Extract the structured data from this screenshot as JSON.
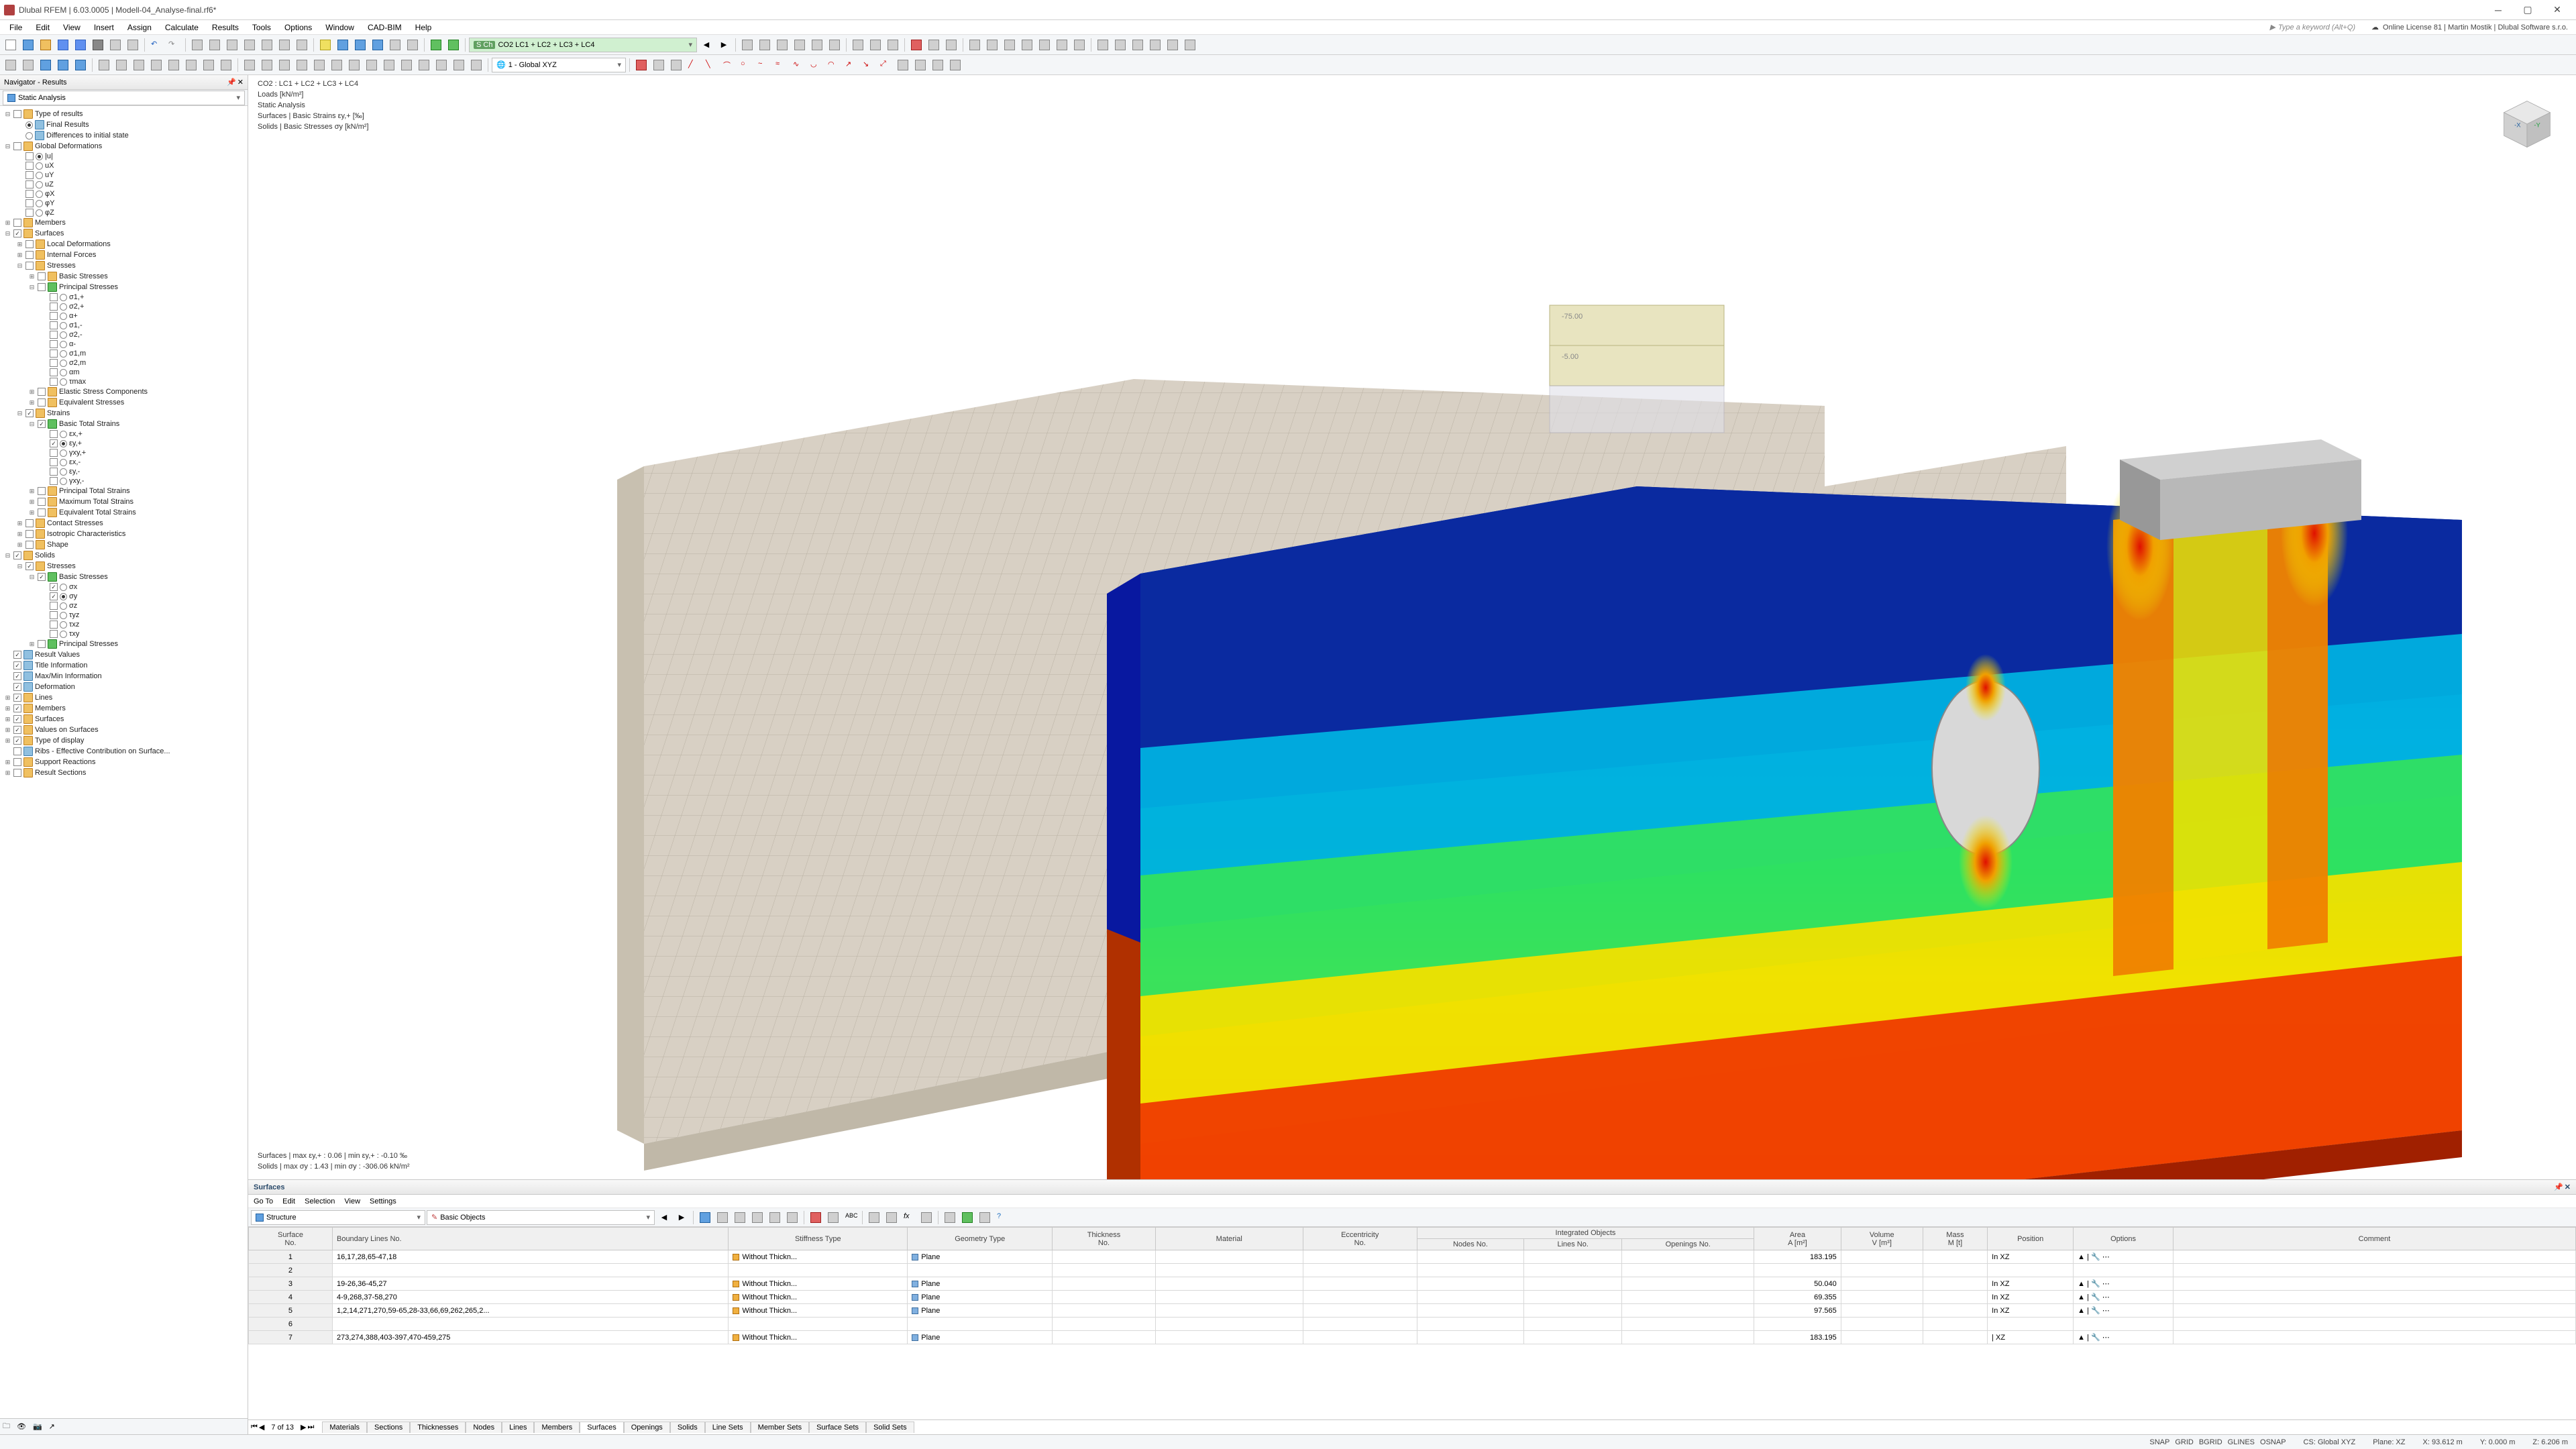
{
  "app": {
    "title": "Dlubal RFEM | 6.03.0005 | Modell-04_Analyse-final.rf6*",
    "search_placeholder": "Type a keyword (Alt+Q)",
    "license": "Online License 81 | Martin Mostik | Dlubal Software s.r.o."
  },
  "menu": [
    "File",
    "Edit",
    "View",
    "Insert",
    "Assign",
    "Calculate",
    "Results",
    "Tools",
    "Options",
    "Window",
    "CAD-BIM",
    "Help"
  ],
  "combo_loadcase": "CO2   LC1 + LC2 + LC3 + LC4",
  "combo_cs": "1 - Global XYZ",
  "navigator": {
    "title": "Navigator - Results",
    "subtype": "Static Analysis",
    "tree": [
      {
        "d": 0,
        "tw": "-",
        "ck": 0,
        "ic": "folder",
        "l": "Type of results"
      },
      {
        "d": 1,
        "tw": "",
        "r": 1,
        "ic": "result",
        "l": "Final Results"
      },
      {
        "d": 1,
        "tw": "",
        "r": 0,
        "ic": "result",
        "l": "Differences to initial state"
      },
      {
        "d": 0,
        "tw": "-",
        "ck": 0,
        "ic": "folder",
        "l": "Global Deformations"
      },
      {
        "d": 1,
        "tw": "",
        "r": 1,
        "ck": 0,
        "ic": "",
        "l": "|u|"
      },
      {
        "d": 1,
        "tw": "",
        "r": 0,
        "ck": 0,
        "ic": "",
        "l": "uX"
      },
      {
        "d": 1,
        "tw": "",
        "r": 0,
        "ck": 0,
        "ic": "",
        "l": "uY"
      },
      {
        "d": 1,
        "tw": "",
        "r": 0,
        "ck": 0,
        "ic": "",
        "l": "uZ"
      },
      {
        "d": 1,
        "tw": "",
        "r": 0,
        "ck": 0,
        "ic": "",
        "l": "φX"
      },
      {
        "d": 1,
        "tw": "",
        "r": 0,
        "ck": 0,
        "ic": "",
        "l": "φY"
      },
      {
        "d": 1,
        "tw": "",
        "r": 0,
        "ck": 0,
        "ic": "",
        "l": "φZ"
      },
      {
        "d": 0,
        "tw": "+",
        "ck": 0,
        "ic": "folder",
        "l": "Members"
      },
      {
        "d": 0,
        "tw": "-",
        "ck": 1,
        "ic": "folder",
        "l": "Surfaces"
      },
      {
        "d": 1,
        "tw": "+",
        "ck": 0,
        "ic": "folder",
        "l": "Local Deformations"
      },
      {
        "d": 1,
        "tw": "+",
        "ck": 0,
        "ic": "folder",
        "l": "Internal Forces"
      },
      {
        "d": 1,
        "tw": "-",
        "ck": 0,
        "ic": "folder",
        "l": "Stresses"
      },
      {
        "d": 2,
        "tw": "+",
        "ck": 0,
        "ic": "folder",
        "l": "Basic Stresses"
      },
      {
        "d": 2,
        "tw": "-",
        "ck": 0,
        "ic": "green",
        "l": "Principal Stresses"
      },
      {
        "d": 3,
        "tw": "",
        "r": 0,
        "ck": 0,
        "ic": "",
        "l": "σ1,+"
      },
      {
        "d": 3,
        "tw": "",
        "r": 0,
        "ck": 0,
        "ic": "",
        "l": "σ2,+"
      },
      {
        "d": 3,
        "tw": "",
        "r": 0,
        "ck": 0,
        "ic": "",
        "l": "α+"
      },
      {
        "d": 3,
        "tw": "",
        "r": 0,
        "ck": 0,
        "ic": "",
        "l": "σ1,-"
      },
      {
        "d": 3,
        "tw": "",
        "r": 0,
        "ck": 0,
        "ic": "",
        "l": "σ2,-"
      },
      {
        "d": 3,
        "tw": "",
        "r": 0,
        "ck": 0,
        "ic": "",
        "l": "α-"
      },
      {
        "d": 3,
        "tw": "",
        "r": 0,
        "ck": 0,
        "ic": "",
        "l": "σ1,m"
      },
      {
        "d": 3,
        "tw": "",
        "r": 0,
        "ck": 0,
        "ic": "",
        "l": "σ2,m"
      },
      {
        "d": 3,
        "tw": "",
        "r": 0,
        "ck": 0,
        "ic": "",
        "l": "αm"
      },
      {
        "d": 3,
        "tw": "",
        "r": 0,
        "ck": 0,
        "ic": "",
        "l": "τmax"
      },
      {
        "d": 2,
        "tw": "+",
        "ck": 0,
        "ic": "folder",
        "l": "Elastic Stress Components"
      },
      {
        "d": 2,
        "tw": "+",
        "ck": 0,
        "ic": "folder",
        "l": "Equivalent Stresses"
      },
      {
        "d": 1,
        "tw": "-",
        "ck": 1,
        "ic": "folder",
        "l": "Strains"
      },
      {
        "d": 2,
        "tw": "-",
        "ck": 1,
        "ic": "green",
        "l": "Basic Total Strains"
      },
      {
        "d": 3,
        "tw": "",
        "r": 0,
        "ck": 0,
        "ic": "",
        "l": "εx,+"
      },
      {
        "d": 3,
        "tw": "",
        "r": 1,
        "ck": 1,
        "ic": "",
        "l": "εy,+"
      },
      {
        "d": 3,
        "tw": "",
        "r": 0,
        "ck": 0,
        "ic": "",
        "l": "γxy,+"
      },
      {
        "d": 3,
        "tw": "",
        "r": 0,
        "ck": 0,
        "ic": "",
        "l": "εx,-"
      },
      {
        "d": 3,
        "tw": "",
        "r": 0,
        "ck": 0,
        "ic": "",
        "l": "εy,-"
      },
      {
        "d": 3,
        "tw": "",
        "r": 0,
        "ck": 0,
        "ic": "",
        "l": "γxy,-"
      },
      {
        "d": 2,
        "tw": "+",
        "ck": 0,
        "ic": "folder",
        "l": "Principal Total Strains"
      },
      {
        "d": 2,
        "tw": "+",
        "ck": 0,
        "ic": "folder",
        "l": "Maximum Total Strains"
      },
      {
        "d": 2,
        "tw": "+",
        "ck": 0,
        "ic": "folder",
        "l": "Equivalent Total Strains"
      },
      {
        "d": 1,
        "tw": "+",
        "ck": 0,
        "ic": "folder",
        "l": "Contact Stresses"
      },
      {
        "d": 1,
        "tw": "+",
        "ck": 0,
        "ic": "folder",
        "l": "Isotropic Characteristics"
      },
      {
        "d": 1,
        "tw": "+",
        "ck": 0,
        "ic": "folder",
        "l": "Shape"
      },
      {
        "d": 0,
        "tw": "-",
        "ck": 1,
        "ic": "folder",
        "l": "Solids"
      },
      {
        "d": 1,
        "tw": "-",
        "ck": 1,
        "ic": "folder",
        "l": "Stresses"
      },
      {
        "d": 2,
        "tw": "-",
        "ck": 1,
        "ic": "green",
        "l": "Basic Stresses"
      },
      {
        "d": 3,
        "tw": "",
        "r": 0,
        "ck": 1,
        "ic": "",
        "l": "σx"
      },
      {
        "d": 3,
        "tw": "",
        "r": 1,
        "ck": 1,
        "ic": "",
        "l": "σy"
      },
      {
        "d": 3,
        "tw": "",
        "r": 0,
        "ck": 0,
        "ic": "",
        "l": "σz"
      },
      {
        "d": 3,
        "tw": "",
        "r": 0,
        "ck": 0,
        "ic": "",
        "l": "τyz"
      },
      {
        "d": 3,
        "tw": "",
        "r": 0,
        "ck": 0,
        "ic": "",
        "l": "τxz"
      },
      {
        "d": 3,
        "tw": "",
        "r": 0,
        "ck": 0,
        "ic": "",
        "l": "τxy"
      },
      {
        "d": 2,
        "tw": "+",
        "ck": 0,
        "ic": "green",
        "l": "Principal Stresses"
      },
      {
        "d": 0,
        "tw": "",
        "ck": 1,
        "ic": "result",
        "l": "Result Values"
      },
      {
        "d": 0,
        "tw": "",
        "ck": 1,
        "ic": "result",
        "l": "Title Information"
      },
      {
        "d": 0,
        "tw": "",
        "ck": 1,
        "ic": "result",
        "l": "Max/Min Information"
      },
      {
        "d": 0,
        "tw": "",
        "ck": 1,
        "ic": "result",
        "l": "Deformation"
      },
      {
        "d": 0,
        "tw": "+",
        "ck": 1,
        "ic": "folder",
        "l": "Lines"
      },
      {
        "d": 0,
        "tw": "+",
        "ck": 1,
        "ic": "folder",
        "l": "Members"
      },
      {
        "d": 0,
        "tw": "+",
        "ck": 1,
        "ic": "folder",
        "l": "Surfaces"
      },
      {
        "d": 0,
        "tw": "+",
        "ck": 1,
        "ic": "folder",
        "l": "Values on Surfaces"
      },
      {
        "d": 0,
        "tw": "+",
        "ck": 1,
        "ic": "folder",
        "l": "Type of display"
      },
      {
        "d": 0,
        "tw": "",
        "ck": 0,
        "ic": "result",
        "l": "Ribs - Effective Contribution on Surface..."
      },
      {
        "d": 0,
        "tw": "+",
        "ck": 0,
        "ic": "folder",
        "l": "Support Reactions"
      },
      {
        "d": 0,
        "tw": "+",
        "ck": 0,
        "ic": "folder",
        "l": "Result Sections"
      }
    ]
  },
  "overlay": {
    "l1": "CO2  :  LC1 + LC2 + LC3 + LC4",
    "l2": "Loads [kN/m²]",
    "l3": "Static Analysis",
    "l4": "Surfaces | Basic Strains εy,+  [‰]",
    "l5": "Solids | Basic Stresses σy  [kN/m²]",
    "b1": "Surfaces | max εy,+ : 0.06 | min εy,+ : -0.10 ‰",
    "b2": "Solids | max σy : 1.43 | min σy : -306.06 kN/m²"
  },
  "fea": {
    "mesh_color": "#d8d0c4",
    "mesh_line": "#b0a898",
    "solid_block": "#b8b8b8",
    "block_top": "#e8e4c0",
    "gradient_stops": [
      {
        "c": "#0a1a8a",
        "p": 0
      },
      {
        "c": "#0060e0",
        "p": 0.18
      },
      {
        "c": "#00c0e0",
        "p": 0.32
      },
      {
        "c": "#00e070",
        "p": 0.48
      },
      {
        "c": "#e0f000",
        "p": 0.62
      },
      {
        "c": "#f0a000",
        "p": 0.8
      },
      {
        "c": "#e01000",
        "p": 1
      }
    ]
  },
  "bottom": {
    "title": "Surfaces",
    "menu": [
      "Go To",
      "Edit",
      "Selection",
      "View",
      "Settings"
    ],
    "structure_combo": "Structure",
    "basic_combo": "Basic Objects",
    "cols": [
      {
        "l": "Surface\nNo.",
        "u": ""
      },
      {
        "l": "Boundary Lines No.",
        "u": ""
      },
      {
        "l": "Stiffness Type",
        "u": ""
      },
      {
        "l": "Geometry Type",
        "u": ""
      },
      {
        "l": "Thickness\nNo.",
        "u": ""
      },
      {
        "l": "Material",
        "u": ""
      },
      {
        "l": "Eccentricity\nNo.",
        "u": ""
      },
      {
        "l": "Nodes No.",
        "u": "Integrated Objects"
      },
      {
        "l": "Lines No.",
        "u": "Integrated Objects"
      },
      {
        "l": "Openings No.",
        "u": "Integrated Objects"
      },
      {
        "l": "Area\nA [m²]",
        "u": ""
      },
      {
        "l": "Volume\nV [m³]",
        "u": ""
      },
      {
        "l": "Mass\nM [t]",
        "u": ""
      },
      {
        "l": "Position",
        "u": ""
      },
      {
        "l": "Options",
        "u": ""
      },
      {
        "l": "Comment",
        "u": ""
      }
    ],
    "rows": [
      {
        "n": "1",
        "b": "16,17,28,65-47,18",
        "s": "Without Thickn...",
        "g": "Plane",
        "a": "183.195",
        "p": "In XZ"
      },
      {
        "n": "2",
        "b": "",
        "s": "",
        "g": "",
        "a": "",
        "p": ""
      },
      {
        "n": "3",
        "b": "19-26,36-45,27",
        "s": "Without Thickn...",
        "g": "Plane",
        "a": "50.040",
        "p": "In XZ"
      },
      {
        "n": "4",
        "b": "4-9,268,37-58,270",
        "s": "Without Thickn...",
        "g": "Plane",
        "a": "69.355",
        "p": "In XZ"
      },
      {
        "n": "5",
        "b": "1,2,14,271,270,59-65,28-33,66,69,262,265,2...",
        "s": "Without Thickn...",
        "g": "Plane",
        "a": "97.565",
        "p": "In XZ"
      },
      {
        "n": "6",
        "b": "",
        "s": "",
        "g": "",
        "a": "",
        "p": ""
      },
      {
        "n": "7",
        "b": "273,274,388,403-397,470-459,275",
        "s": "Without Thickn...",
        "g": "Plane",
        "a": "183.195",
        "p": "| XZ"
      }
    ],
    "page": "7 of 13",
    "tabs": [
      "Materials",
      "Sections",
      "Thicknesses",
      "Nodes",
      "Lines",
      "Members",
      "Surfaces",
      "Openings",
      "Solids",
      "Line Sets",
      "Member Sets",
      "Surface Sets",
      "Solid Sets"
    ],
    "active_tab": "Surfaces"
  },
  "status": {
    "snaps": [
      "SNAP",
      "GRID",
      "BGRID",
      "GLINES",
      "OSNAP"
    ],
    "cs": "CS: Global XYZ",
    "plane": "Plane: XZ",
    "x": "X: 93.612 m",
    "y": "Y: 0.000 m",
    "z": "Z: 6.206 m"
  }
}
